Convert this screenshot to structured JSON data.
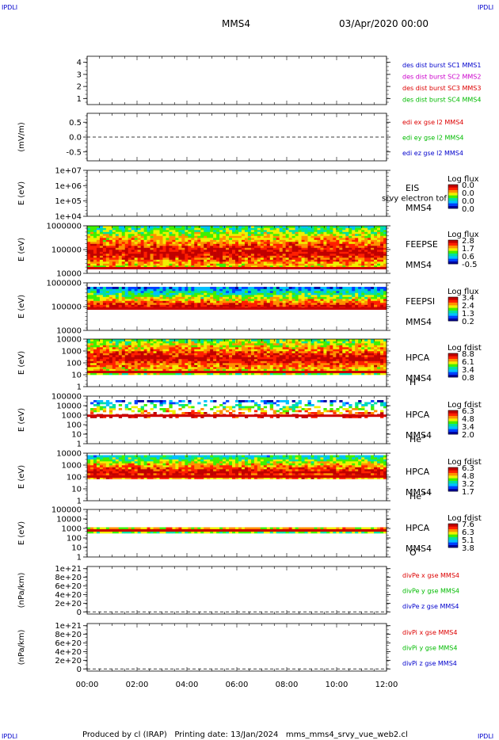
{
  "corner_label": "IPDLI",
  "header": {
    "spacecraft": "MMS4",
    "datetime": "03/Apr/2020 00:00"
  },
  "footer": "Produced by cl (IRAP)   Printing date: 13/Jan/2024   mms_mms4_srvy_vue_web2.cl",
  "colors": {
    "blue": "#0000cc",
    "magenta": "#cc00cc",
    "red": "#dd0000",
    "green": "#00bb00",
    "cmap": [
      "#0000a0",
      "#0040ff",
      "#00c0ff",
      "#00e0a0",
      "#40f000",
      "#f0f000",
      "#ff9000",
      "#ff2000",
      "#c00000"
    ]
  },
  "chart_data": [
    {
      "id": "p1",
      "type": "line",
      "ylim": [
        0.5,
        4.5
      ],
      "yticks": [
        "1",
        "2",
        "3",
        "4"
      ],
      "ytickvals": [
        1,
        2,
        3,
        4
      ],
      "legend": [
        {
          "text": "des dist burst SC1 MMS1",
          "color": "blue"
        },
        {
          "text": "des dist burst SC2 MMS2",
          "color": "magenta"
        },
        {
          "text": "des dist burst SC3 MMS3",
          "color": "red"
        },
        {
          "text": "des dist burst SC4 MMS4",
          "color": "green"
        }
      ]
    },
    {
      "id": "p2",
      "type": "line",
      "ylabel": "(mV/m)",
      "ylim": [
        -0.8,
        0.8
      ],
      "yticks": [
        "0.5",
        "0.0",
        "-0.5"
      ],
      "ytickvals": [
        0.5,
        0,
        -0.5
      ],
      "zero_dashed": true,
      "legend": [
        {
          "text": "edi ex gse l2 MMS4",
          "color": "red"
        },
        {
          "text": "edi ey gse l2 MMS4",
          "color": "green"
        },
        {
          "text": "edi ez gse l2 MMS4",
          "color": "blue"
        }
      ]
    },
    {
      "id": "p3",
      "type": "heatmap",
      "ylabel": "E (eV)",
      "log": true,
      "ylim": [
        4,
        7
      ],
      "yticks": [
        "1e+07",
        "1e+06",
        "1e+05",
        "1e+04"
      ],
      "ytickvals": [
        7,
        6,
        5,
        4
      ],
      "instrument": [
        "EIS",
        "MMS4"
      ],
      "overlay": "srvy electron tof",
      "cbar": {
        "title": "Log flux",
        "ticks": [
          "0.0",
          "0.0",
          "0.0",
          "0.0"
        ]
      }
    },
    {
      "id": "p4",
      "type": "heatmap",
      "ylabel": "E (eV)",
      "log": true,
      "ylim": [
        4,
        6
      ],
      "yticks": [
        "1000000",
        "100000",
        "10000"
      ],
      "ytickvals": [
        6,
        5,
        4
      ],
      "instrument": [
        "FEEPSE",
        "MMS4"
      ],
      "cbar": {
        "title": "Log flux",
        "ticks": [
          "2.8",
          "1.7",
          "0.6",
          "-0.5"
        ]
      }
    },
    {
      "id": "p5",
      "type": "heatmap",
      "ylabel": "E (eV)",
      "log": true,
      "ylim": [
        4,
        6
      ],
      "yticks": [
        "1000000",
        "100000",
        "10000"
      ],
      "ytickvals": [
        6,
        5,
        4
      ],
      "instrument": [
        "FEEPSI",
        "MMS4"
      ],
      "cbar": {
        "title": "Log flux",
        "ticks": [
          "3.4",
          "2.4",
          "1.3",
          "0.2"
        ]
      }
    },
    {
      "id": "p6",
      "type": "heatmap",
      "ylabel": "E (eV)",
      "log": true,
      "ylim": [
        0,
        4
      ],
      "yticks": [
        "10000",
        "1000",
        "100",
        "10",
        "1"
      ],
      "ytickvals": [
        4,
        3,
        2,
        1,
        0
      ],
      "instrument": [
        "HPCA",
        "MMS4"
      ],
      "species": "H",
      "species_sup": "+",
      "cbar": {
        "title": "Log fdist",
        "ticks": [
          "8.8",
          "6.1",
          "3.4",
          "0.8"
        ]
      }
    },
    {
      "id": "p7",
      "type": "heatmap",
      "ylabel": "E (eV)",
      "log": true,
      "ylim": [
        0,
        5
      ],
      "yticks": [
        "100000",
        "10000",
        "1000",
        "100",
        "10",
        "1"
      ],
      "ytickvals": [
        5,
        4,
        3,
        2,
        1,
        0
      ],
      "instrument": [
        "HPCA",
        "MMS4"
      ],
      "species": "He",
      "species_sup": "+",
      "cbar": {
        "title": "Log fdist",
        "ticks": [
          "6.3",
          "4.8",
          "3.4",
          "2.0"
        ]
      }
    },
    {
      "id": "p8",
      "type": "heatmap",
      "ylabel": "E (eV)",
      "log": true,
      "ylim": [
        0,
        4
      ],
      "yticks": [
        "10000",
        "1000",
        "100",
        "10",
        "1"
      ],
      "ytickvals": [
        4,
        3,
        2,
        1,
        0
      ],
      "instrument": [
        "HPCA",
        "MMS4"
      ],
      "species": "He",
      "species_sup": "++",
      "cbar": {
        "title": "Log fdist",
        "ticks": [
          "6.3",
          "4.8",
          "3.2",
          "1.7"
        ]
      }
    },
    {
      "id": "p9",
      "type": "heatmap",
      "ylabel": "E (eV)",
      "log": true,
      "ylim": [
        0,
        5
      ],
      "yticks": [
        "100000",
        "10000",
        "1000",
        "100",
        "10",
        "1"
      ],
      "ytickvals": [
        5,
        4,
        3,
        2,
        1,
        0
      ],
      "instrument": [
        "HPCA",
        "MMS4"
      ],
      "species": "O",
      "species_sup": "+",
      "cbar": {
        "title": "Log fdist",
        "ticks": [
          "7.6",
          "6.3",
          "5.1",
          "3.8"
        ]
      }
    },
    {
      "id": "p10",
      "type": "line",
      "ylabel": "(nPa/km)",
      "ylim": [
        -0.05,
        1.05
      ],
      "yticks": [
        "1e+21",
        "8e+20",
        "6e+20",
        "4e+20",
        "2e+20",
        "0"
      ],
      "ytickvals": [
        1,
        0.8,
        0.6,
        0.4,
        0.2,
        0
      ],
      "zero_dashed": true,
      "legend": [
        {
          "text": "divPe x gse MMS4",
          "color": "red"
        },
        {
          "text": "divPe y gse MMS4",
          "color": "green"
        },
        {
          "text": "divPe z gse MMS4",
          "color": "blue"
        }
      ]
    },
    {
      "id": "p11",
      "type": "line",
      "ylabel": "(nPa/km)",
      "ylim": [
        -0.05,
        1.05
      ],
      "yticks": [
        "1e+21",
        "8e+20",
        "6e+20",
        "4e+20",
        "2e+20",
        "0"
      ],
      "ytickvals": [
        1,
        0.8,
        0.6,
        0.4,
        0.2,
        0
      ],
      "zero_dashed": true,
      "legend": [
        {
          "text": "divPi x gse MMS4",
          "color": "red"
        },
        {
          "text": "divPi y gse MMS4",
          "color": "green"
        },
        {
          "text": "divPi z gse MMS4",
          "color": "blue"
        }
      ]
    }
  ],
  "xaxis": {
    "ticks": [
      "00:00",
      "02:00",
      "04:00",
      "06:00",
      "08:00",
      "10:00",
      "12:00"
    ]
  }
}
